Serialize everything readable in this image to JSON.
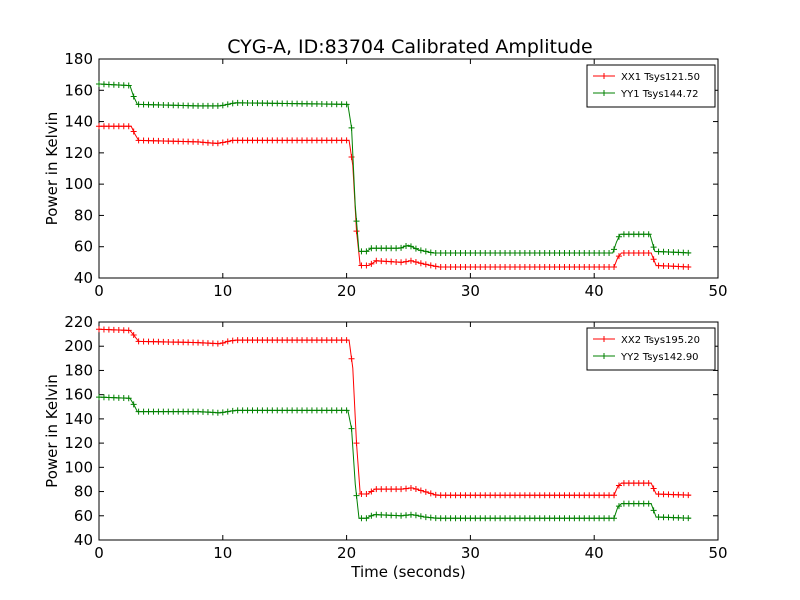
{
  "chart_data": [
    {
      "type": "line",
      "title": "CYG-A, ID:83704 Calibrated Amplitude",
      "xlabel": "",
      "ylabel": "Power in Kelvin",
      "xlim": [
        0,
        50
      ],
      "ylim": [
        40,
        180
      ],
      "xticks": [
        "0",
        "10",
        "20",
        "30",
        "40",
        "50"
      ],
      "yticks": [
        "40",
        "60",
        "80",
        "100",
        "120",
        "140",
        "160",
        "180"
      ],
      "grid": false,
      "legend_position": "top-right",
      "series": [
        {
          "name": "XX1 Tsys121.50",
          "color": "#ff0000",
          "points": [
            [
              0,
              137
            ],
            [
              2.6,
              137
            ],
            [
              2.9,
              132
            ],
            [
              3.2,
              128
            ],
            [
              8,
              127
            ],
            [
              9.5,
              126
            ],
            [
              10.3,
              127
            ],
            [
              10.8,
              128
            ],
            [
              20.2,
              128
            ],
            [
              20.5,
              112
            ],
            [
              20.8,
              70
            ],
            [
              21.1,
              48
            ],
            [
              21.8,
              48
            ],
            [
              22.4,
              51
            ],
            [
              24.5,
              50
            ],
            [
              25.2,
              51
            ],
            [
              26.2,
              49
            ],
            [
              27.5,
              47
            ],
            [
              41.6,
              47
            ],
            [
              41.9,
              53
            ],
            [
              42.2,
              56
            ],
            [
              44.6,
              56
            ],
            [
              45,
              48
            ],
            [
              47.8,
              47
            ]
          ]
        },
        {
          "name": "YY1 Tsys144.72",
          "color": "#008000",
          "points": [
            [
              0,
              164
            ],
            [
              2.5,
              163
            ],
            [
              2.8,
              156
            ],
            [
              3.1,
              151
            ],
            [
              8,
              150
            ],
            [
              9.8,
              150
            ],
            [
              10.4,
              151
            ],
            [
              11,
              152
            ],
            [
              20.1,
              151
            ],
            [
              20.4,
              136
            ],
            [
              20.7,
              86
            ],
            [
              21,
              57
            ],
            [
              21.6,
              57
            ],
            [
              22,
              59
            ],
            [
              24.3,
              59
            ],
            [
              25,
              61
            ],
            [
              25.8,
              58
            ],
            [
              27,
              56
            ],
            [
              41.5,
              56
            ],
            [
              41.8,
              63
            ],
            [
              42.1,
              68
            ],
            [
              44.5,
              68
            ],
            [
              44.9,
              57
            ],
            [
              47.8,
              56
            ]
          ]
        }
      ]
    },
    {
      "type": "line",
      "title": "",
      "xlabel": "Time (seconds)",
      "ylabel": "Power in Kelvin",
      "xlim": [
        0,
        50
      ],
      "ylim": [
        40,
        220
      ],
      "xticks": [
        "0",
        "10",
        "20",
        "30",
        "40",
        "50"
      ],
      "yticks": [
        "40",
        "60",
        "80",
        "100",
        "120",
        "140",
        "160",
        "180",
        "200",
        "220"
      ],
      "grid": false,
      "legend_position": "top-right",
      "series": [
        {
          "name": "XX2 Tsys195.20",
          "color": "#ff0000",
          "points": [
            [
              0,
              214
            ],
            [
              2.5,
              213
            ],
            [
              2.9,
              208
            ],
            [
              3.2,
              204
            ],
            [
              8,
              203
            ],
            [
              9.8,
              202
            ],
            [
              10.4,
              204
            ],
            [
              11,
              205
            ],
            [
              20.2,
              205
            ],
            [
              20.5,
              182
            ],
            [
              20.8,
              120
            ],
            [
              21.1,
              78
            ],
            [
              21.7,
              78
            ],
            [
              22.3,
              82
            ],
            [
              24.4,
              82
            ],
            [
              25.3,
              83
            ],
            [
              26.3,
              80
            ],
            [
              27.3,
              77
            ],
            [
              41.6,
              77
            ],
            [
              41.9,
              84
            ],
            [
              42.2,
              87
            ],
            [
              44.6,
              87
            ],
            [
              45,
              78
            ],
            [
              47.8,
              77
            ]
          ]
        },
        {
          "name": "YY2 Tsys142.90",
          "color": "#008000",
          "points": [
            [
              0,
              158
            ],
            [
              2.5,
              157
            ],
            [
              2.8,
              152
            ],
            [
              3.1,
              146
            ],
            [
              8,
              146
            ],
            [
              9.8,
              145
            ],
            [
              10.4,
              146
            ],
            [
              11,
              147
            ],
            [
              20.1,
              147
            ],
            [
              20.4,
              132
            ],
            [
              20.7,
              86
            ],
            [
              21,
              58
            ],
            [
              21.6,
              58
            ],
            [
              22.2,
              61
            ],
            [
              24.4,
              60
            ],
            [
              25.3,
              61
            ],
            [
              26.3,
              59
            ],
            [
              27.3,
              58
            ],
            [
              41.6,
              58
            ],
            [
              41.9,
              67
            ],
            [
              42.2,
              70
            ],
            [
              44.6,
              70
            ],
            [
              45,
              59
            ],
            [
              47.8,
              58
            ]
          ]
        }
      ]
    }
  ]
}
